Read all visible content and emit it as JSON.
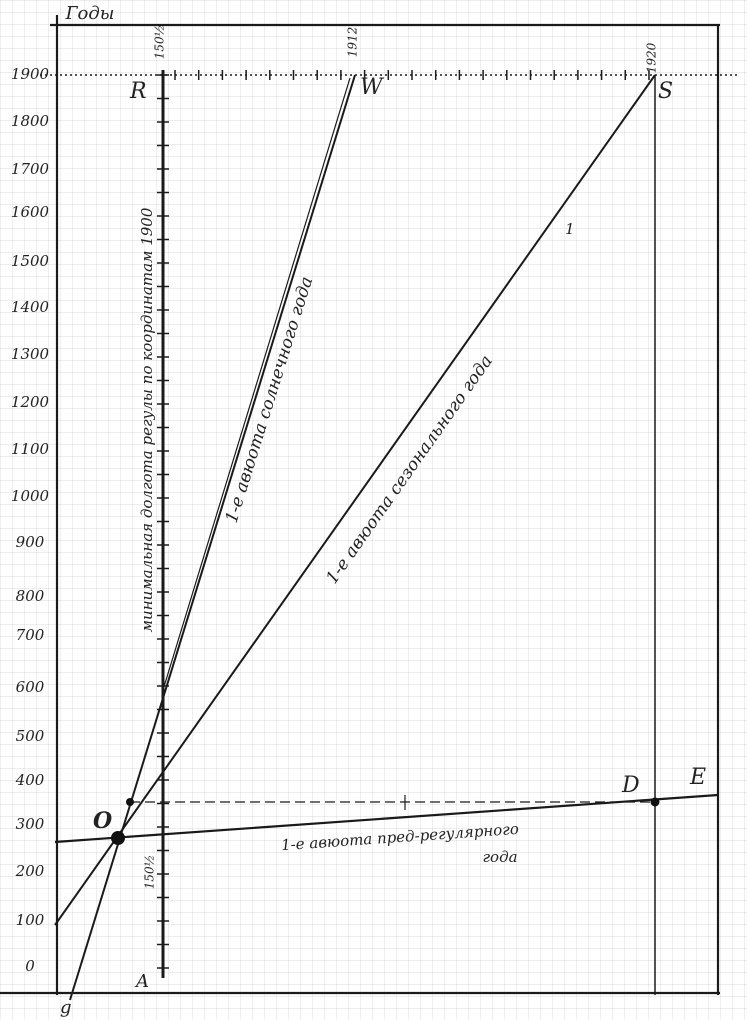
{
  "header": {
    "title": "Годы"
  },
  "axis_labels": [
    "1900",
    "1800",
    "1700",
    "1600",
    "1500",
    "1400",
    "1300",
    "1200",
    "1100",
    "1000",
    "900",
    "800",
    "700",
    "600",
    "500",
    "400",
    "300",
    "200",
    "100",
    "0"
  ],
  "top_labels": [
    "150½",
    "1912",
    "1920"
  ],
  "bottom_label": "150½",
  "points": [
    "R",
    "W",
    "S",
    "O",
    "D",
    "E",
    "A",
    "g"
  ],
  "lines": {
    "solar": "1-е авюота солнечного года",
    "seasonal": "1-е авюота сезонального года",
    "preregular": "1-е авюота пред-регулярного",
    "preregular_end": "года",
    "axis": "минимальная долгота регулы по координатам 1900"
  },
  "marks": {
    "one": "1"
  }
}
